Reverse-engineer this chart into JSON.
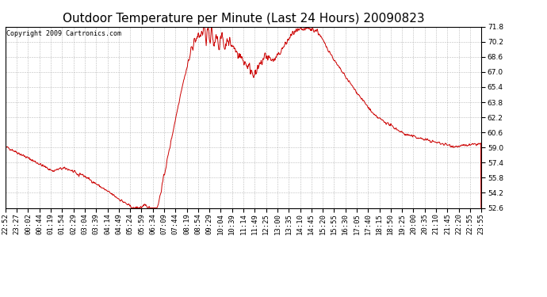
{
  "title": "Outdoor Temperature per Minute (Last 24 Hours) 20090823",
  "copyright_text": "Copyright 2009 Cartronics.com",
  "line_color": "#cc0000",
  "background_color": "#ffffff",
  "plot_bg_color": "#ffffff",
  "grid_color": "#aaaaaa",
  "ylim": [
    52.6,
    71.8
  ],
  "yticks": [
    52.6,
    54.2,
    55.8,
    57.4,
    59.0,
    60.6,
    62.2,
    63.8,
    65.4,
    67.0,
    68.6,
    70.2,
    71.8
  ],
  "x_labels": [
    "22:52",
    "23:27",
    "00:02",
    "00:44",
    "01:19",
    "01:54",
    "02:29",
    "03:04",
    "03:39",
    "04:14",
    "04:49",
    "05:24",
    "05:59",
    "06:34",
    "07:09",
    "07:44",
    "08:19",
    "08:54",
    "09:29",
    "10:04",
    "10:39",
    "11:14",
    "11:49",
    "12:25",
    "13:00",
    "13:35",
    "14:10",
    "14:45",
    "15:20",
    "15:55",
    "16:30",
    "17:05",
    "17:40",
    "18:15",
    "18:50",
    "19:25",
    "20:00",
    "20:35",
    "21:10",
    "21:45",
    "22:20",
    "22:55",
    "23:55"
  ],
  "title_fontsize": 11,
  "tick_fontsize": 6.5,
  "copyright_fontsize": 6,
  "line_width": 0.7
}
